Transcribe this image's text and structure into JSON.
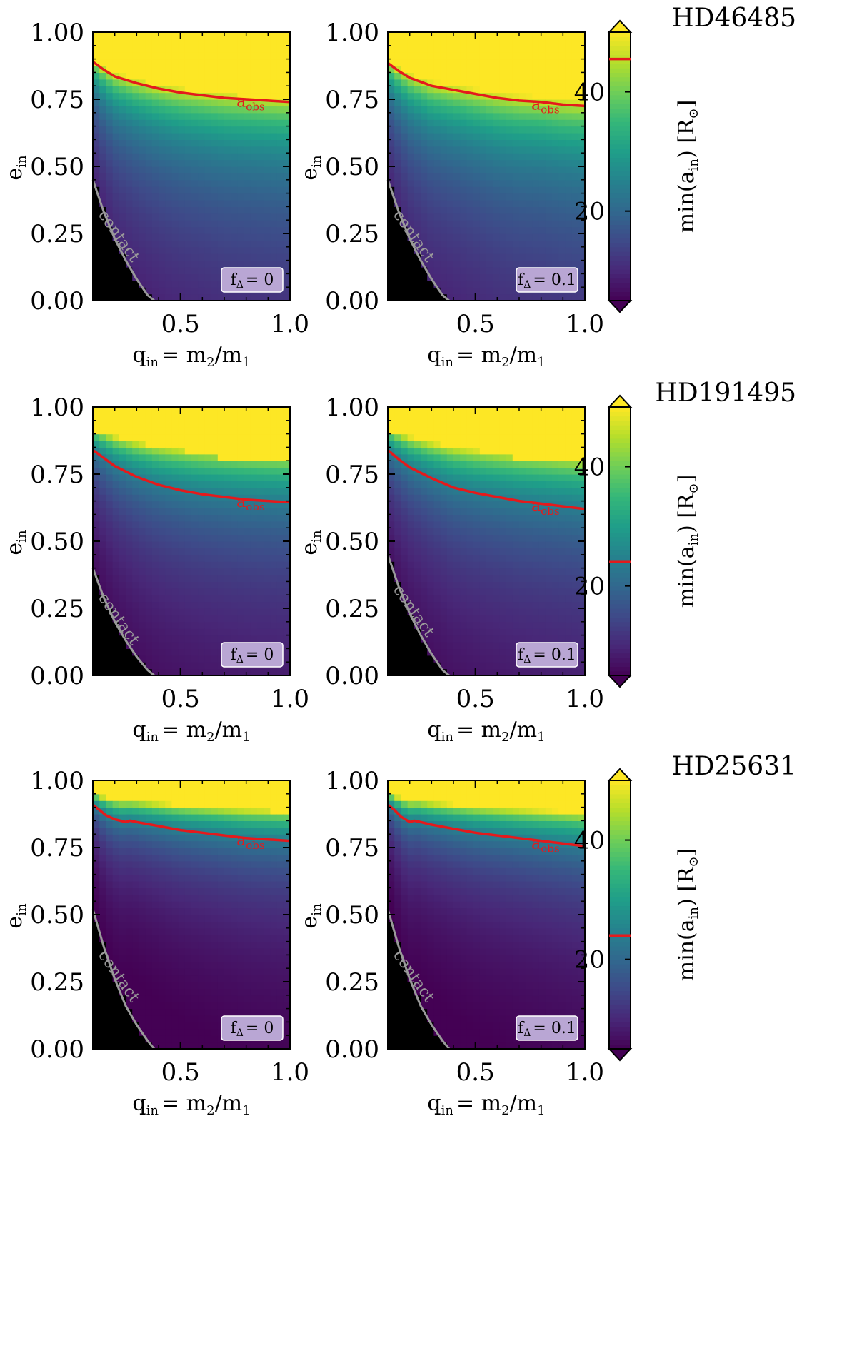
{
  "figure": {
    "x_ticks": [
      "0.5",
      "1.0"
    ],
    "y_ticks": [
      "0.00",
      "0.25",
      "0.50",
      "0.75",
      "1.00"
    ],
    "xlabel_main": "q",
    "xlabel_sub": "in",
    "xlabel_rhs": "= m",
    "xlabel_sub2": "2",
    "xlabel_div": "/m",
    "xlabel_sub3": "1",
    "ylabel_main": "e",
    "ylabel_sub": "in",
    "cbar_label_main": "min(a",
    "cbar_label_sub": "in",
    "cbar_label_end": ") [R",
    "cbar_label_sun": "⊙",
    "cbar_label_close": "]",
    "cbar_ticks": [
      "20",
      "40"
    ],
    "aobs_main": "a",
    "aobs_sub": "obs",
    "contact_label": "contact",
    "fdelta_main": "f",
    "fdelta_sub": "Δ",
    "colors": {
      "line_red": "#e41a1c",
      "contact_grey": "#9a9a9a",
      "region_black": "#000000"
    }
  },
  "chart_data": [
    {
      "type": "heatmap",
      "system": "HD46485",
      "xlim": [
        0.1,
        1.0
      ],
      "ylim": [
        0.0,
        1.0
      ],
      "colorbar": {
        "min": 5,
        "max": 50,
        "ticks": [
          20,
          40
        ],
        "colormap": "viridis",
        "a_obs": 45.5
      },
      "panels": [
        {
          "f_delta_label": "= 0",
          "aobs_curve": {
            "x": [
              0.1,
              0.15,
              0.2,
              0.3,
              0.4,
              0.5,
              0.6,
              0.7,
              0.8,
              0.9,
              1.0
            ],
            "y": [
              0.89,
              0.86,
              0.835,
              0.81,
              0.79,
              0.775,
              0.765,
              0.755,
              0.75,
              0.745,
              0.74
            ]
          },
          "contact_curve": {
            "x": [
              0.1,
              0.15,
              0.2,
              0.25,
              0.3,
              0.35,
              0.38
            ],
            "y": [
              0.45,
              0.33,
              0.23,
              0.15,
              0.08,
              0.02,
              0.0
            ]
          },
          "saturation_e": [
            0.88,
            0.85,
            0.82,
            0.8,
            0.79,
            0.78,
            0.77,
            0.76,
            0.76,
            0.75
          ]
        },
        {
          "f_delta_label": "= 0.1",
          "aobs_curve": {
            "x": [
              0.1,
              0.15,
              0.2,
              0.3,
              0.4,
              0.5,
              0.6,
              0.7,
              0.8,
              0.9,
              1.0
            ],
            "y": [
              0.885,
              0.855,
              0.83,
              0.8,
              0.785,
              0.77,
              0.755,
              0.745,
              0.74,
              0.73,
              0.725
            ]
          },
          "contact_curve": {
            "x": [
              0.1,
              0.15,
              0.2,
              0.25,
              0.3,
              0.35,
              0.38
            ],
            "y": [
              0.45,
              0.33,
              0.23,
              0.15,
              0.08,
              0.02,
              0.0
            ]
          },
          "saturation_e": [
            0.88,
            0.85,
            0.82,
            0.8,
            0.79,
            0.78,
            0.77,
            0.76,
            0.76,
            0.75
          ]
        }
      ]
    },
    {
      "type": "heatmap",
      "system": "HD191495",
      "xlim": [
        0.1,
        1.0
      ],
      "ylim": [
        0.0,
        1.0
      ],
      "colorbar": {
        "min": 5,
        "max": 50,
        "ticks": [
          20,
          40
        ],
        "colormap": "viridis",
        "a_obs": 24
      },
      "panels": [
        {
          "f_delta_label": "= 0",
          "aobs_curve": {
            "x": [
              0.1,
              0.15,
              0.2,
              0.3,
              0.4,
              0.5,
              0.6,
              0.7,
              0.8,
              0.9,
              1.0
            ],
            "y": [
              0.84,
              0.81,
              0.78,
              0.74,
              0.71,
              0.69,
              0.675,
              0.665,
              0.655,
              0.65,
              0.645
            ]
          },
          "contact_curve": {
            "x": [
              0.1,
              0.15,
              0.2,
              0.25,
              0.3,
              0.35,
              0.38
            ],
            "y": [
              0.4,
              0.29,
              0.2,
              0.13,
              0.07,
              0.02,
              0.0
            ]
          },
          "saturation_e": [
            0.91,
            0.89,
            0.87,
            0.85,
            0.84,
            0.82,
            0.81,
            0.81,
            0.8,
            0.8
          ]
        },
        {
          "f_delta_label": "= 0.1",
          "aobs_curve": {
            "x": [
              0.1,
              0.15,
              0.2,
              0.3,
              0.4,
              0.5,
              0.6,
              0.7,
              0.8,
              0.9,
              1.0
            ],
            "y": [
              0.84,
              0.805,
              0.775,
              0.735,
              0.7,
              0.68,
              0.665,
              0.65,
              0.64,
              0.63,
              0.62
            ]
          },
          "contact_curve": {
            "x": [
              0.1,
              0.15,
              0.2,
              0.25,
              0.3,
              0.35,
              0.38
            ],
            "y": [
              0.45,
              0.33,
              0.23,
              0.15,
              0.08,
              0.02,
              0.0
            ]
          },
          "saturation_e": [
            0.91,
            0.89,
            0.87,
            0.85,
            0.84,
            0.82,
            0.81,
            0.81,
            0.8,
            0.8
          ]
        }
      ]
    },
    {
      "type": "heatmap",
      "system": "HD25631",
      "xlim": [
        0.1,
        1.0
      ],
      "ylim": [
        0.0,
        1.0
      ],
      "colorbar": {
        "min": 5,
        "max": 50,
        "ticks": [
          20,
          40
        ],
        "colormap": "viridis",
        "a_obs": 24
      },
      "panels": [
        {
          "f_delta_label": "= 0",
          "aobs_curve": {
            "x": [
              0.1,
              0.13,
              0.16,
              0.2,
              0.25,
              0.27,
              0.3,
              0.4,
              0.5,
              0.6,
              0.7,
              0.8,
              0.9,
              1.0
            ],
            "y": [
              0.91,
              0.89,
              0.87,
              0.855,
              0.845,
              0.85,
              0.845,
              0.83,
              0.815,
              0.805,
              0.795,
              0.785,
              0.78,
              0.775
            ]
          },
          "contact_curve": {
            "x": [
              0.1,
              0.15,
              0.2,
              0.25,
              0.3,
              0.35,
              0.38
            ],
            "y": [
              0.52,
              0.38,
              0.26,
              0.16,
              0.09,
              0.03,
              0.0
            ]
          },
          "saturation_e": [
            0.96,
            0.94,
            0.93,
            0.92,
            0.91,
            0.9,
            0.9,
            0.89,
            0.89,
            0.88
          ]
        },
        {
          "f_delta_label": "= 0.1",
          "aobs_curve": {
            "x": [
              0.1,
              0.13,
              0.16,
              0.2,
              0.22,
              0.25,
              0.3,
              0.4,
              0.5,
              0.6,
              0.7,
              0.8,
              0.9,
              1.0
            ],
            "y": [
              0.91,
              0.89,
              0.865,
              0.845,
              0.85,
              0.845,
              0.835,
              0.82,
              0.805,
              0.795,
              0.785,
              0.775,
              0.765,
              0.755
            ]
          },
          "contact_curve": {
            "x": [
              0.1,
              0.15,
              0.2,
              0.25,
              0.3,
              0.35,
              0.38
            ],
            "y": [
              0.52,
              0.38,
              0.26,
              0.16,
              0.09,
              0.03,
              0.0
            ]
          },
          "saturation_e": [
            0.96,
            0.94,
            0.93,
            0.92,
            0.91,
            0.9,
            0.9,
            0.89,
            0.89,
            0.88
          ]
        }
      ]
    }
  ]
}
